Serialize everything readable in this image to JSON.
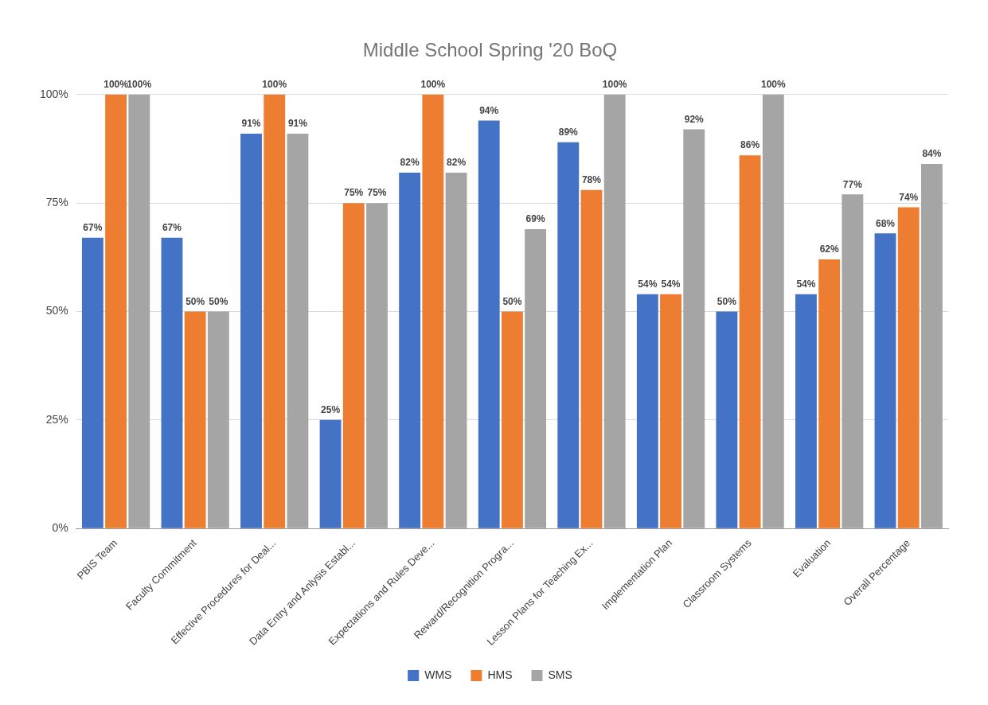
{
  "chart_data": {
    "type": "bar",
    "title": "Middle School Spring '20 BoQ",
    "categories": [
      "PBIS Team",
      "Faculty Commitment",
      "Effective Procedures for Deal...",
      "Data Entry and Anlysis Establ...",
      "Expectations and Rules Deve...",
      "Reward/Recognition Progra...",
      "Lesson Plans for Teaching Ex...",
      "Implementation Plan",
      "Classroom Systems",
      "Evaluation",
      "Overall Percentage"
    ],
    "series": [
      {
        "name": "WMS",
        "color": "#4472c4",
        "values": [
          67,
          67,
          91,
          25,
          82,
          94,
          89,
          54,
          50,
          54,
          68
        ],
        "value_labels": [
          "67%",
          "67%",
          "91%",
          "25%",
          "82%",
          "94%",
          "89%",
          "54%",
          "50%",
          "54%",
          "68%"
        ]
      },
      {
        "name": "HMS",
        "color": "#ed7d31",
        "values": [
          100,
          50,
          100,
          75,
          100,
          50,
          78,
          54,
          86,
          62,
          74
        ],
        "value_labels": [
          "100%",
          "50%",
          "100%",
          "75%",
          "100%",
          "50%",
          "78%",
          "54%",
          "86%",
          "62%",
          "74%"
        ]
      },
      {
        "name": "SMS",
        "color": "#a5a5a5",
        "values": [
          100,
          50,
          91,
          75,
          82,
          69,
          100,
          92,
          100,
          77,
          84
        ],
        "value_labels": [
          "100%",
          "50%",
          "91%",
          "75%",
          "82%",
          "69%",
          "100%",
          "92%",
          "100%",
          "77%",
          "84%"
        ]
      }
    ],
    "ylim": [
      0,
      100
    ],
    "yticks": [
      {
        "value": 0,
        "label": "0%"
      },
      {
        "value": 25,
        "label": "25%"
      },
      {
        "value": 50,
        "label": "50%"
      },
      {
        "value": 75,
        "label": "75%"
      },
      {
        "value": 100,
        "label": "100%"
      }
    ],
    "grid": "y",
    "legend": "bottom"
  }
}
